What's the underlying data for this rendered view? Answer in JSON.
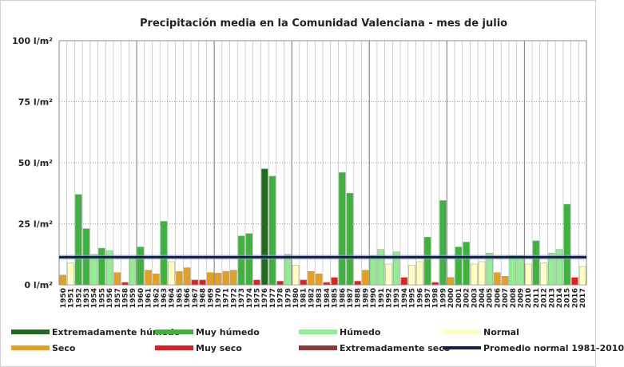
{
  "chart_data": {
    "type": "bar",
    "title": "Precipitación media en la Comunidad Valenciana - mes de julio",
    "ylim": [
      0,
      100
    ],
    "yticks": [
      {
        "value": 0,
        "label": "0 l/m²"
      },
      {
        "value": 25,
        "label": "25 l/m²"
      },
      {
        "value": 50,
        "label": "50 l/m²"
      },
      {
        "value": 75,
        "label": "75 l/m²"
      },
      {
        "value": 100,
        "label": "100 l/m²"
      }
    ],
    "grid": true,
    "legend_position": "bottom",
    "categories": [
      "1950",
      "1951",
      "1952",
      "1953",
      "1954",
      "1955",
      "1956",
      "1957",
      "1958",
      "1959",
      "1960",
      "1961",
      "1962",
      "1963",
      "1964",
      "1965",
      "1966",
      "1967",
      "1968",
      "1969",
      "1970",
      "1971",
      "1972",
      "1973",
      "1974",
      "1975",
      "1976",
      "1977",
      "1978",
      "1979",
      "1980",
      "1981",
      "1982",
      "1983",
      "1984",
      "1985",
      "1986",
      "1987",
      "1988",
      "1989",
      "1990",
      "1991",
      "1992",
      "1993",
      "1994",
      "1995",
      "1996",
      "1997",
      "1998",
      "1999",
      "2000",
      "2001",
      "2002",
      "2003",
      "2004",
      "2005",
      "2006",
      "2007",
      "2008",
      "2009",
      "2010",
      "2011",
      "2012",
      "2013",
      "2014",
      "2015",
      "2016",
      "2017"
    ],
    "values": [
      4,
      9,
      37,
      23,
      12.5,
      15,
      14,
      5,
      1,
      11,
      15.5,
      6,
      4.5,
      26,
      9.5,
      5.5,
      7,
      2,
      2,
      5,
      4.8,
      5.5,
      6,
      20,
      21,
      2,
      47.5,
      44.5,
      1.5,
      12.5,
      8,
      2,
      5.5,
      4.5,
      1,
      3,
      46,
      37.5,
      1.5,
      6,
      12,
      14.5,
      8.5,
      13.5,
      3,
      8,
      9.5,
      19.5,
      1,
      34.5,
      3,
      15.5,
      17.5,
      8.5,
      9.5,
      13,
      5,
      3.5,
      12,
      12,
      8.5,
      18,
      9,
      13,
      14.5,
      33,
      3,
      7.5
    ],
    "classes": [
      "seco",
      "normal",
      "muy_humedo",
      "muy_humedo",
      "humedo",
      "muy_humedo",
      "humedo",
      "seco",
      "muy_seco",
      "humedo",
      "muy_humedo",
      "seco",
      "seco",
      "muy_humedo",
      "normal",
      "seco",
      "seco",
      "muy_seco",
      "muy_seco",
      "seco",
      "seco",
      "seco",
      "seco",
      "muy_humedo",
      "muy_humedo",
      "muy_seco",
      "extremadamente_humedo",
      "muy_humedo",
      "muy_seco",
      "humedo",
      "normal",
      "muy_seco",
      "seco",
      "seco",
      "muy_seco",
      "muy_seco",
      "muy_humedo",
      "muy_humedo",
      "muy_seco",
      "seco",
      "humedo",
      "humedo",
      "normal",
      "humedo",
      "muy_seco",
      "normal",
      "normal",
      "muy_humedo",
      "muy_seco",
      "muy_humedo",
      "seco",
      "muy_humedo",
      "muy_humedo",
      "normal",
      "normal",
      "humedo",
      "seco",
      "seco",
      "humedo",
      "humedo",
      "normal",
      "muy_humedo",
      "normal",
      "humedo",
      "humedo",
      "muy_humedo",
      "muy_seco",
      "normal"
    ],
    "reference_line": {
      "value": 11.3
    },
    "colors": {
      "extremadamente_humedo": "#1e6b1e",
      "muy_humedo": "#3cb43c",
      "humedo": "#90ee90",
      "normal": "#ffffc0",
      "seco": "#e6a020",
      "muy_seco": "#e02020",
      "extremadamente_seco": "#8b3a3a",
      "promedio": "#10204a"
    },
    "legend": [
      {
        "key": "extremadamente_humedo",
        "label": "Extremadamente húmedo"
      },
      {
        "key": "muy_humedo",
        "label": "Muy húmedo"
      },
      {
        "key": "humedo",
        "label": "Húmedo"
      },
      {
        "key": "normal",
        "label": "Normal"
      },
      {
        "key": "seco",
        "label": "Seco"
      },
      {
        "key": "muy_seco",
        "label": "Muy seco"
      },
      {
        "key": "extremadamente_seco",
        "label": "Extremadamente seco"
      },
      {
        "key": "promedio",
        "label": "Promedio normal 1981-2010"
      }
    ]
  }
}
